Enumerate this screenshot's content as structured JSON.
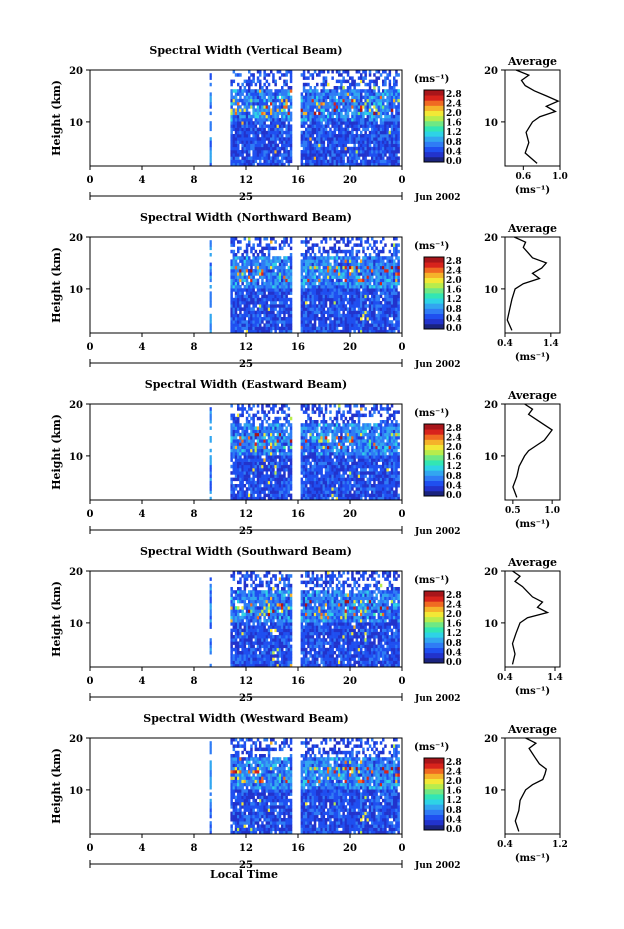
{
  "figure": {
    "xlabel": "Local Time",
    "date_label": "Jun 2002",
    "day_label": "25",
    "x_ticks": [
      "0",
      "4",
      "8",
      "12",
      "16",
      "20",
      "0"
    ],
    "height_label": "Height (km)",
    "unit_label": "(ms⁻¹)",
    "colorbar_ticks": [
      "2.8",
      "2.4",
      "2.0",
      "1.6",
      "1.2",
      "0.8",
      "0.4",
      "0.0"
    ],
    "colors": [
      "#1a237e",
      "#2233cc",
      "#1f4ff0",
      "#2f7cf5",
      "#32a6f0",
      "#2ed3e6",
      "#32e6b4",
      "#6fe884",
      "#b8ec4c",
      "#f2e836",
      "#f5b32a",
      "#f06a22",
      "#d8231c",
      "#a8151a"
    ],
    "average_title": "Average",
    "average_xlabel": "(ms⁻¹)"
  },
  "chart_data": [
    {
      "type": "heatmap",
      "title": "Spectral Width (Vertical Beam)",
      "xlabel": "Local Time",
      "ylabel": "Height (km)",
      "xlim": [
        0,
        24
      ],
      "ylim": [
        1.5,
        20
      ],
      "y_ticks": [
        10,
        20
      ],
      "colorbar_range": [
        0.0,
        3.0
      ],
      "profile": {
        "title": "Average",
        "xlabel": "(ms⁻¹)",
        "xlim": [
          0.4,
          1.0
        ],
        "x_ticks": [
          "0.6",
          "1.0"
        ],
        "x_tick_values": [
          0.6,
          1.0
        ],
        "heights": [
          2,
          4,
          6,
          8,
          10,
          11,
          12,
          13,
          14,
          15,
          16,
          17,
          18,
          19,
          20
        ],
        "values": [
          0.75,
          0.62,
          0.66,
          0.63,
          0.7,
          0.78,
          0.95,
          0.85,
          0.98,
          0.85,
          0.72,
          0.62,
          0.58,
          0.66,
          0.52
        ]
      }
    },
    {
      "type": "heatmap",
      "title": "Spectral Width (Northward Beam)",
      "xlabel": "Local Time",
      "ylabel": "Height (km)",
      "xlim": [
        0,
        24
      ],
      "ylim": [
        1.5,
        20
      ],
      "y_ticks": [
        10,
        20
      ],
      "colorbar_range": [
        0.0,
        3.0
      ],
      "profile": {
        "title": "Average",
        "xlabel": "(ms⁻¹)",
        "xlim": [
          0.4,
          1.6
        ],
        "x_ticks": [
          "0.4",
          "1.4"
        ],
        "x_tick_values": [
          0.4,
          1.4
        ],
        "heights": [
          2,
          4,
          6,
          8,
          10,
          11,
          12,
          13,
          14,
          15,
          16,
          17,
          18,
          19,
          20
        ],
        "values": [
          0.55,
          0.45,
          0.5,
          0.55,
          0.62,
          0.8,
          1.15,
          1.0,
          1.2,
          1.3,
          1.0,
          0.9,
          0.8,
          0.85,
          0.6
        ]
      }
    },
    {
      "type": "heatmap",
      "title": "Spectral Width (Eastward Beam)",
      "xlabel": "Local Time",
      "ylabel": "Height (km)",
      "xlim": [
        0,
        24
      ],
      "ylim": [
        1.5,
        20
      ],
      "y_ticks": [
        10,
        20
      ],
      "colorbar_range": [
        0.0,
        3.0
      ],
      "profile": {
        "title": "Average",
        "xlabel": "(ms⁻¹)",
        "xlim": [
          0.4,
          1.1
        ],
        "x_ticks": [
          "0.5",
          "1.0"
        ],
        "x_tick_values": [
          0.5,
          1.0
        ],
        "heights": [
          2,
          4,
          6,
          8,
          10,
          11,
          12,
          13,
          14,
          15,
          16,
          17,
          18,
          19,
          20
        ],
        "values": [
          0.55,
          0.5,
          0.55,
          0.58,
          0.65,
          0.7,
          0.8,
          0.9,
          0.95,
          1.0,
          0.9,
          0.8,
          0.7,
          0.75,
          0.65
        ]
      }
    },
    {
      "type": "heatmap",
      "title": "Spectral Width (Southward Beam)",
      "xlabel": "Local Time",
      "ylabel": "Height (km)",
      "xlim": [
        0,
        24
      ],
      "ylim": [
        1.5,
        20
      ],
      "y_ticks": [
        10,
        20
      ],
      "colorbar_range": [
        0.0,
        3.0
      ],
      "profile": {
        "title": "Average",
        "xlabel": "(ms⁻¹)",
        "xlim": [
          0.4,
          1.5
        ],
        "x_ticks": [
          "0.4",
          "1.4"
        ],
        "x_tick_values": [
          0.4,
          1.4
        ],
        "heights": [
          2,
          4,
          6,
          8,
          10,
          11,
          12,
          13,
          14,
          15,
          16,
          17,
          18,
          19,
          20
        ],
        "values": [
          0.55,
          0.6,
          0.55,
          0.62,
          0.7,
          0.85,
          1.25,
          1.05,
          1.15,
          0.95,
          0.85,
          0.75,
          0.6,
          0.7,
          0.55
        ]
      }
    },
    {
      "type": "heatmap",
      "title": "Spectral Width (Westward Beam)",
      "xlabel": "Local Time",
      "ylabel": "Height (km)",
      "xlim": [
        0,
        24
      ],
      "ylim": [
        1.5,
        20
      ],
      "y_ticks": [
        10,
        20
      ],
      "colorbar_range": [
        0.0,
        3.0
      ],
      "profile": {
        "title": "Average",
        "xlabel": "(ms⁻¹)",
        "xlim": [
          0.4,
          1.2
        ],
        "x_ticks": [
          "0.4",
          "1.2"
        ],
        "x_tick_values": [
          0.4,
          1.2
        ],
        "heights": [
          2,
          4,
          6,
          8,
          10,
          11,
          12,
          13,
          14,
          15,
          16,
          17,
          18,
          19,
          20
        ],
        "values": [
          0.6,
          0.55,
          0.6,
          0.62,
          0.7,
          0.8,
          0.95,
          0.98,
          1.0,
          0.9,
          0.85,
          0.8,
          0.75,
          0.85,
          0.7
        ]
      }
    }
  ]
}
